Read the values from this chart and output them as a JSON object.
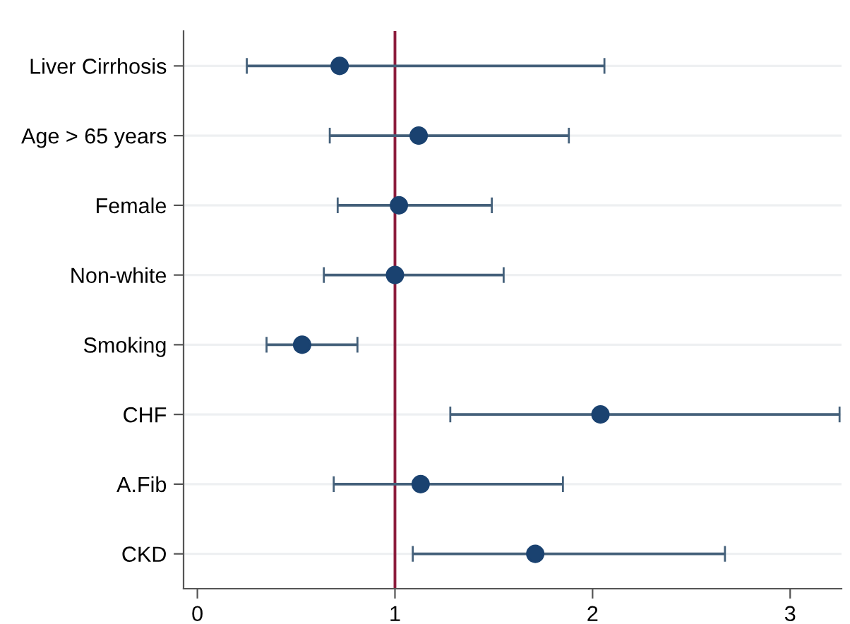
{
  "chart_data": {
    "type": "scatter",
    "orientation": "horizontal",
    "categories": [
      "Liver Cirrhosis",
      "Age > 65 years",
      "Female",
      "Non-white",
      "Smoking",
      "CHF",
      "A.Fib",
      "CKD"
    ],
    "values": [
      0.72,
      1.12,
      1.02,
      1.0,
      0.53,
      2.04,
      1.13,
      1.71
    ],
    "errors": [
      [
        0.25,
        2.06
      ],
      [
        0.67,
        1.88
      ],
      [
        0.71,
        1.49
      ],
      [
        0.64,
        1.55
      ],
      [
        0.35,
        0.81
      ],
      [
        1.28,
        3.25
      ],
      [
        0.69,
        1.85
      ],
      [
        1.09,
        2.67
      ]
    ],
    "color": "#1a4270",
    "marker": "circle",
    "xlim": [
      -0.07,
      3.26
    ],
    "xticks": [
      0,
      1,
      2,
      3
    ],
    "grid": "y",
    "ref_lines": [
      {
        "axis": "x",
        "value": 1,
        "color": "#8c1c3c"
      }
    ]
  }
}
